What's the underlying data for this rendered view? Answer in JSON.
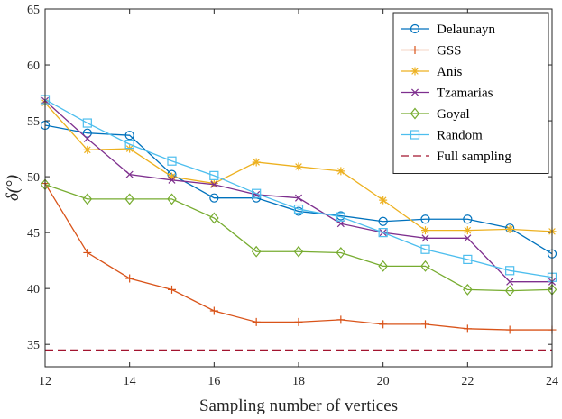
{
  "chart_data": {
    "type": "line",
    "title": "",
    "xlabel": "Sampling number of vertices",
    "ylabel": "δ(°)",
    "xlim": [
      12,
      24
    ],
    "ylim": [
      33,
      65
    ],
    "xticks": [
      12,
      14,
      16,
      18,
      20,
      22,
      24
    ],
    "yticks": [
      35,
      40,
      45,
      50,
      55,
      60,
      65
    ],
    "x": [
      12,
      13,
      14,
      15,
      16,
      17,
      18,
      19,
      20,
      21,
      22,
      23,
      24
    ],
    "legend_position": "top-right",
    "series": [
      {
        "name": "Delaunayn",
        "color": "#0072BD",
        "marker": "circle",
        "dash": "solid",
        "values": [
          54.6,
          53.9,
          53.7,
          50.2,
          48.1,
          48.1,
          46.9,
          46.5,
          46.0,
          46.2,
          46.2,
          45.4,
          43.1
        ]
      },
      {
        "name": "GSS",
        "color": "#D95319",
        "marker": "plus",
        "dash": "solid",
        "values": [
          49.4,
          43.2,
          40.9,
          39.9,
          38.0,
          37.0,
          37.0,
          37.2,
          36.8,
          36.8,
          36.4,
          36.3,
          36.3
        ]
      },
      {
        "name": "Anis",
        "color": "#EDB120",
        "marker": "star",
        "dash": "solid",
        "values": [
          56.6,
          52.4,
          52.5,
          50.0,
          49.4,
          51.3,
          50.9,
          50.5,
          47.9,
          45.2,
          45.2,
          45.3,
          45.1
        ]
      },
      {
        "name": "Tzamarias",
        "color": "#7E2F8E",
        "marker": "cross",
        "dash": "solid",
        "values": [
          56.8,
          53.4,
          50.2,
          49.7,
          49.3,
          48.4,
          48.1,
          45.8,
          45.0,
          44.5,
          44.5,
          40.6,
          40.6
        ]
      },
      {
        "name": "Goyal",
        "color": "#77AC30",
        "marker": "diamond",
        "dash": "solid",
        "values": [
          49.3,
          48.0,
          48.0,
          48.0,
          46.3,
          43.3,
          43.3,
          43.2,
          42.0,
          42.0,
          39.9,
          39.8,
          39.9
        ]
      },
      {
        "name": "Random",
        "color": "#4DBEEE",
        "marker": "square",
        "dash": "solid",
        "values": [
          56.9,
          54.8,
          52.9,
          51.4,
          50.1,
          48.5,
          47.1,
          46.4,
          45.0,
          43.5,
          42.6,
          41.6,
          41.0
        ]
      },
      {
        "name": "Full sampling",
        "color": "#A2142F",
        "marker": "none",
        "dash": "dashed",
        "values": [
          34.5,
          34.5,
          34.5,
          34.5,
          34.5,
          34.5,
          34.5,
          34.5,
          34.5,
          34.5,
          34.5,
          34.5,
          34.5
        ]
      }
    ]
  }
}
